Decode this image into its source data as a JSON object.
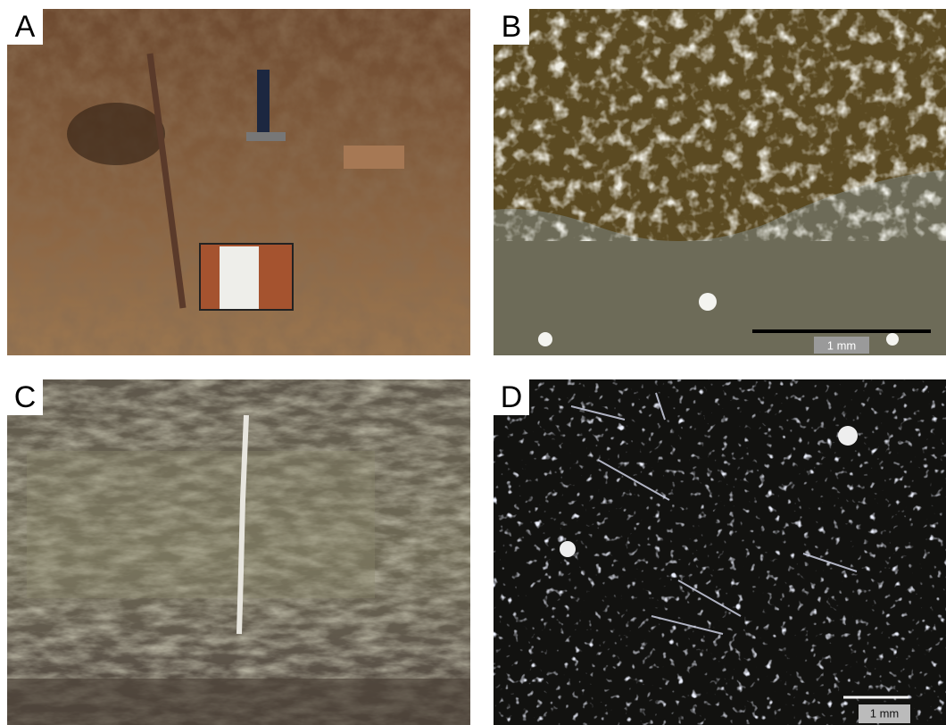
{
  "panels": [
    {
      "label": "A"
    },
    {
      "label": "B",
      "scale_bar": "1 mm"
    },
    {
      "label": "C"
    },
    {
      "label": "D",
      "scale_bar": "1 mm"
    }
  ]
}
